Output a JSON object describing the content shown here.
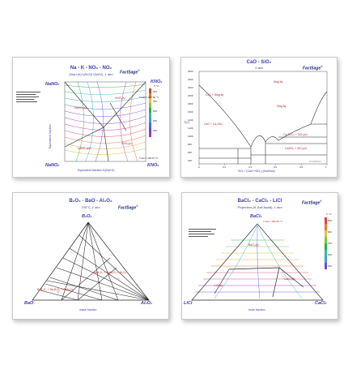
{
  "panels": {
    "p1": {
      "title": "Na - K - NO₃ - NO₂",
      "subtitle": "(Na)+(K)+(NO3)+(NO2), 1 atm",
      "logo": "FactSage",
      "vertices": {
        "top_left": "NaNO₃",
        "top_right": "KNO₃",
        "bottom_left": "NaNO₂",
        "bottom_right": "KNO₂"
      },
      "y_axis": "Equivalent fraction",
      "x_axis": "Equivalent fraction K/(Na+K)",
      "tmax": "Tmax = 447.50 °C",
      "tmin": "Tmin = 136.67 °C",
      "temps": [
        "T, °C",
        "400",
        "375",
        "350",
        "325",
        "300",
        "275",
        "250",
        "225",
        "200",
        "175",
        "150"
      ],
      "regions": [
        "NaNO₂(s)",
        "KNO₃(s)",
        "NaNO₂(s2)",
        "KNO₂(s)"
      ]
    },
    "p2": {
      "title": "CaO - SiO₂",
      "subtitle": "1 atm",
      "logo": "FactSage",
      "y_axis": "T(C)",
      "x_axis": "SiO₂ / (CaO+SiO₂) (mol/mol)",
      "y_ticks": [
        "2600",
        "2400",
        "2200",
        "2000",
        "1800",
        "1600",
        "1400",
        "1200",
        "1000",
        "800",
        "600",
        "400"
      ],
      "x_ticks": [
        "0",
        "0.2",
        "0.4",
        "0.6",
        "0.8",
        "1"
      ],
      "regions": [
        "Slag-liq",
        "CaO + Slag-liq",
        "Slag-liq",
        "CaO + Ca₂SiO₄",
        "Ca₃Si₂O₇ + SiO₂(cr)",
        "CaSiO₃ + SiO₂(cr)"
      ],
      "footnote": "2013/06/27"
    },
    "p3": {
      "title": "B₂O₃ - BaO - Al₂O₃",
      "subtitle": "700°C, 1 atm",
      "logo": "FactSage",
      "vertices": {
        "top": "B₂O₃",
        "left": "BaO",
        "right": "Al₂O₃"
      },
      "x_axis": "mass fraction",
      "labels": [
        "BaB₂O₄ + Ba₂B₂O₅ + BaAl₂O₄",
        "BaB₄O₇ + BaAl₂O₄ + Al₂O₃"
      ]
    },
    "p4": {
      "title": "BaCl₂ - CaCl₂ - LiCl",
      "subtitle": "Projection (A-Salt-liquid), 1 atm",
      "logo": "FactSage",
      "vertices": {
        "top": "BaCl₂",
        "left": "LiCl",
        "right": "CaCl₂"
      },
      "x_axis": "mole fraction",
      "note": "Tmax = 962.00 °C",
      "temps": [
        "T, °C",
        "900",
        "800",
        "700",
        "600",
        "500",
        "400"
      ],
      "regions": [
        "BaCl₂(s)",
        "CaCl₂(s)",
        "LiCl(s)"
      ]
    }
  }
}
